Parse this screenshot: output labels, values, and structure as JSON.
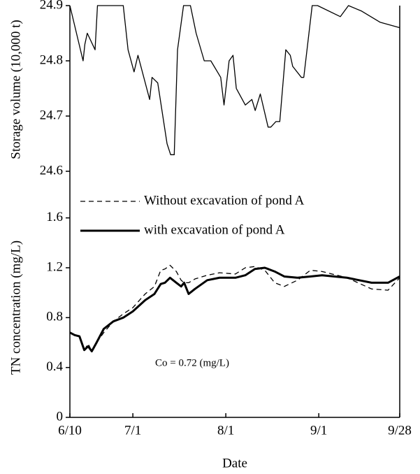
{
  "chart_data": [
    {
      "type": "line",
      "ylabel": "Storage volume (10,000 t)",
      "x": [
        0,
        4.4,
        5,
        5.8,
        8.4,
        9.2,
        17.8,
        18.6,
        19.4,
        21.4,
        22.7,
        26.6,
        27.4,
        29.3,
        32.4,
        33.6,
        34.8,
        35.9,
        37.9,
        40.2,
        42.1,
        44.8,
        47,
        50.3,
        51.4,
        53.1,
        54.4,
        55.5,
        58.5,
        60.7,
        61.8,
        63.5,
        66.1,
        67,
        68.7,
        70,
        72,
        73.5,
        74.3,
        77.2,
        78,
        80.8,
        82.6,
        90.2,
        92.9,
        97.3,
        103.4,
        110
      ],
      "values": [
        24.9,
        24.8,
        24.83,
        24.85,
        24.82,
        24.9,
        24.9,
        24.86,
        24.82,
        24.78,
        24.81,
        24.73,
        24.77,
        24.76,
        24.65,
        24.63,
        24.63,
        24.82,
        24.9,
        24.9,
        24.85,
        24.8,
        24.8,
        24.77,
        24.72,
        24.8,
        24.81,
        24.75,
        24.72,
        24.73,
        24.71,
        24.74,
        24.68,
        24.68,
        24.69,
        24.69,
        24.82,
        24.81,
        24.79,
        24.77,
        24.77,
        24.9,
        24.9,
        24.88,
        24.9,
        24.89,
        24.87,
        24.86
      ],
      "color": "#000000",
      "xlim": [
        0,
        110
      ],
      "ylim": [
        24.6,
        24.9
      ],
      "yticks": [
        24.6,
        24.7,
        24.8,
        24.9
      ]
    },
    {
      "type": "line",
      "ylabel": "TN concentration (mg/L)",
      "xlabel": "Date",
      "annotation": "Co = 0.72 (mg/L)",
      "x": [
        0,
        1.6,
        3.2,
        4.8,
        6.1,
        7.3,
        8.9,
        11.3,
        14.5,
        17.8,
        21,
        25.1,
        28.2,
        30.3,
        31.7,
        33.4,
        35.5,
        37.1,
        38.1,
        39.6,
        41.7,
        45.8,
        49.9,
        55.2,
        58.5,
        61.7,
        65,
        68.3,
        71.5,
        75.9,
        80.2,
        84.1,
        92.4,
        100.6,
        106.1,
        110
      ],
      "series": [
        {
          "name": "Without excavation of pond A",
          "color": "#000000",
          "dash": "dashed",
          "width": 1.3,
          "values": [
            0.68,
            0.66,
            0.65,
            0.54,
            0.59,
            0.53,
            0.6,
            0.68,
            0.77,
            0.83,
            0.88,
            0.99,
            1.05,
            1.18,
            1.19,
            1.22,
            1.17,
            1.1,
            1.08,
            1.08,
            1.11,
            1.14,
            1.16,
            1.15,
            1.2,
            1.21,
            1.18,
            1.08,
            1.05,
            1.1,
            1.18,
            1.17,
            1.12,
            1.03,
            1.02,
            1.12
          ]
        },
        {
          "name": "with excavation of pond A",
          "color": "#000000",
          "dash": "solid",
          "width": 3,
          "values": [
            0.68,
            0.66,
            0.65,
            0.54,
            0.57,
            0.53,
            0.6,
            0.71,
            0.77,
            0.8,
            0.85,
            0.94,
            0.99,
            1.07,
            1.08,
            1.12,
            1.08,
            1.05,
            1.08,
            0.99,
            1.03,
            1.1,
            1.12,
            1.12,
            1.14,
            1.19,
            1.2,
            1.17,
            1.13,
            1.12,
            1.13,
            1.14,
            1.12,
            1.08,
            1.08,
            1.13
          ]
        }
      ],
      "xlim": [
        0,
        110
      ],
      "ylim": [
        0,
        1.8
      ],
      "xticks": [
        {
          "value": 0,
          "label": "6/10"
        },
        {
          "value": 21,
          "label": "7/1"
        },
        {
          "value": 52,
          "label": "8/1"
        },
        {
          "value": 83,
          "label": "9/1"
        },
        {
          "value": 110,
          "label": "9/28"
        }
      ],
      "yticks": [
        0,
        0.4,
        0.8,
        1.2,
        1.6
      ]
    }
  ]
}
